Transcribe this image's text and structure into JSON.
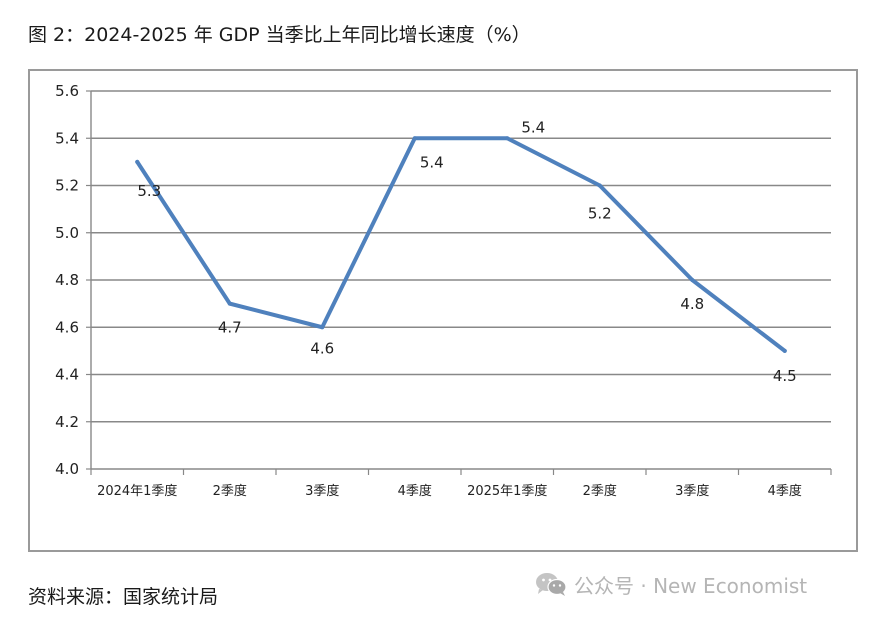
{
  "title": "图 2：2024-2025 年 GDP 当季比上年同比增长速度（%）",
  "source": "资料来源：国家统计局",
  "watermark": {
    "text": "公众号 · New Economist",
    "icon": "wechat-icon"
  },
  "chart_data": {
    "type": "line",
    "title": "图 2：2024-2025 年 GDP 当季比上年同比增长速度（%）",
    "xlabel": "",
    "ylabel": "",
    "categories": [
      "2024年1季度",
      "2季度",
      "3季度",
      "4季度",
      "2025年1季度",
      "2季度",
      "3季度",
      "4季度"
    ],
    "series": [
      {
        "values": [
          5.3,
          4.7,
          4.6,
          5.4,
          5.4,
          5.2,
          4.8,
          4.5
        ],
        "color": "#4f81bd"
      }
    ],
    "data_labels": [
      "5.3",
      "4.7",
      "4.6",
      "5.4",
      "5.4",
      "5.2",
      "4.8",
      "4.5"
    ],
    "ylim": [
      4.0,
      5.6
    ],
    "yticks": [
      "4.0",
      "4.2",
      "4.4",
      "4.6",
      "4.8",
      "5.0",
      "5.2",
      "5.4",
      "5.6"
    ],
    "grid": true,
    "legend": "none"
  }
}
